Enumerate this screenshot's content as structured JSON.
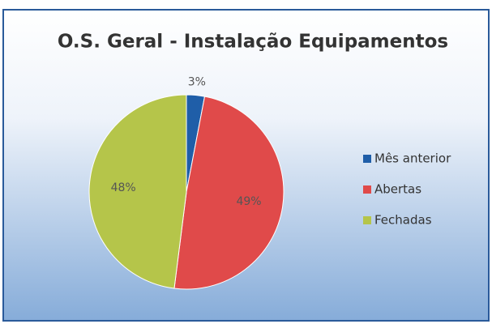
{
  "chart_data": {
    "type": "pie",
    "title": "O.S. Geral - Instalação Equipamentos",
    "categories": [
      "Mês anterior",
      "Abertas",
      "Fechadas"
    ],
    "values": [
      3,
      49,
      48
    ],
    "value_labels": [
      "3%",
      "49%",
      "48%"
    ],
    "colors": [
      "#1f5ea8",
      "#e04a4a",
      "#b5c54a"
    ],
    "legend": "right"
  }
}
